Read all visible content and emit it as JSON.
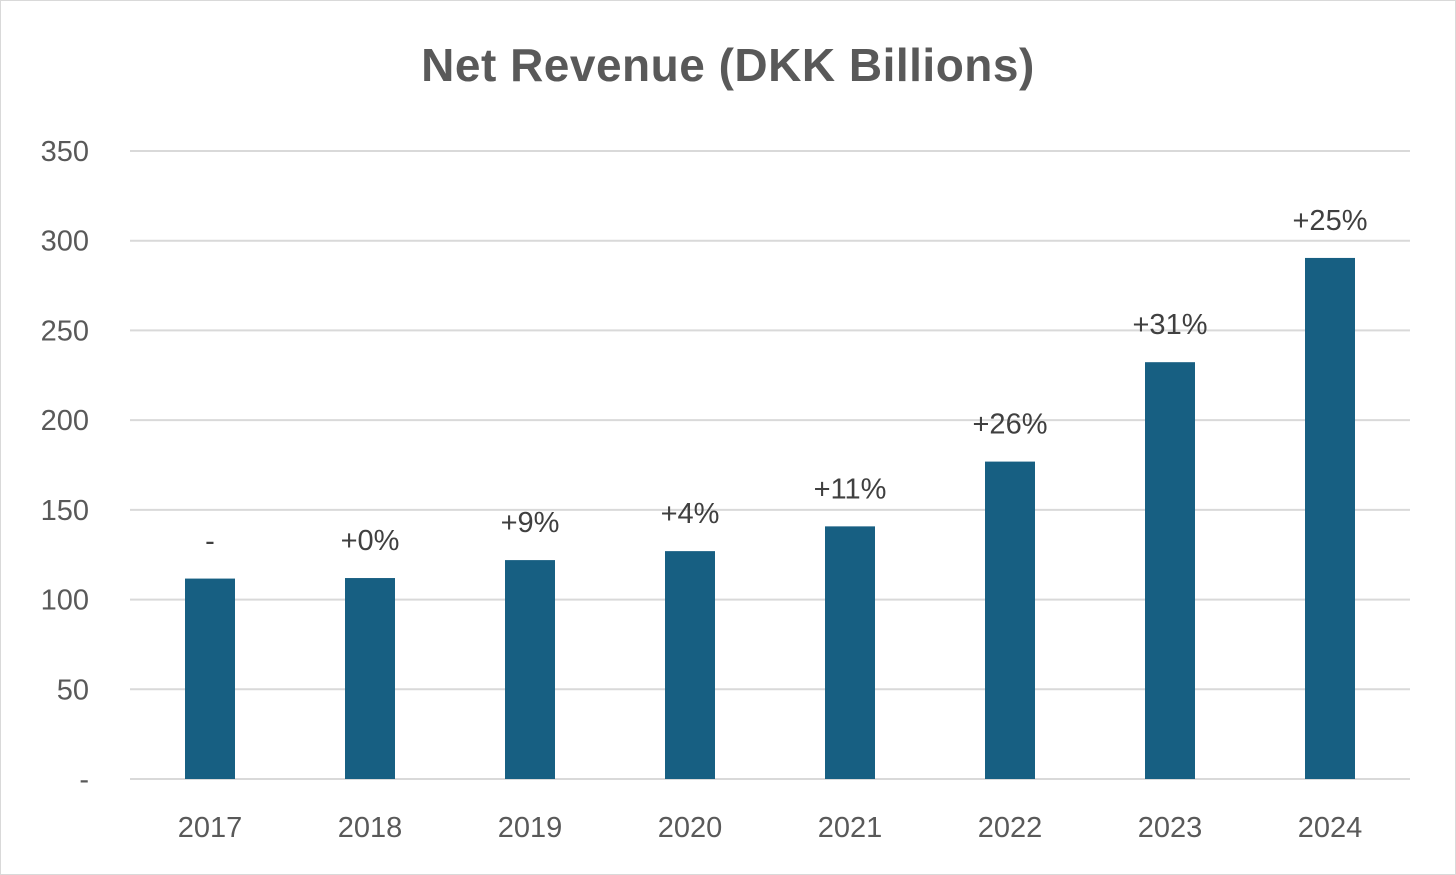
{
  "chart_data": {
    "type": "bar",
    "title": "Net Revenue (DKK Billions)",
    "xlabel": "",
    "ylabel": "",
    "categories": [
      "2017",
      "2018",
      "2019",
      "2020",
      "2021",
      "2022",
      "2023",
      "2024"
    ],
    "values": [
      111.7,
      112.0,
      122.0,
      127.0,
      140.8,
      176.9,
      232.3,
      290.4
    ],
    "data_labels": [
      "-",
      "+0%",
      "+9%",
      "+4%",
      "+11%",
      "+26%",
      "+31%",
      "+25%"
    ],
    "ylim": [
      0,
      350
    ],
    "yticks": [
      0,
      50,
      100,
      150,
      200,
      250,
      300,
      350
    ],
    "ytick_labels": [
      "-",
      "50",
      "100",
      "150",
      "200",
      "250",
      "300",
      "350"
    ],
    "grid": true,
    "legend": "none",
    "bar_color": "#175f82",
    "grid_color": "#d9d9d9"
  }
}
